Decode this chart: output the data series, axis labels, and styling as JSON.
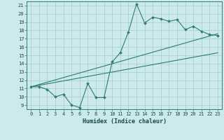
{
  "xlabel": "Humidex (Indice chaleur)",
  "xlim": [
    -0.5,
    23.5
  ],
  "ylim": [
    8.5,
    21.5
  ],
  "xticks": [
    0,
    1,
    2,
    3,
    4,
    5,
    6,
    7,
    8,
    9,
    10,
    11,
    12,
    13,
    14,
    15,
    16,
    17,
    18,
    19,
    20,
    21,
    22,
    23
  ],
  "yticks": [
    9,
    10,
    11,
    12,
    13,
    14,
    15,
    16,
    17,
    18,
    19,
    20,
    21
  ],
  "bg_color": "#cce9ec",
  "line_color": "#2e7d6b",
  "grid_color": "#aacfd4",
  "data_x": [
    0,
    1,
    2,
    3,
    4,
    5,
    6,
    7,
    8,
    9,
    10,
    11,
    12,
    13,
    14,
    15,
    16,
    17,
    18,
    19,
    20,
    21,
    22,
    23
  ],
  "data_y": [
    11.2,
    11.2,
    10.9,
    10.0,
    10.3,
    9.0,
    8.7,
    11.6,
    9.9,
    9.9,
    14.2,
    15.3,
    17.8,
    21.2,
    18.9,
    19.6,
    19.4,
    19.1,
    19.3,
    18.1,
    18.5,
    17.9,
    17.5,
    17.4
  ],
  "line1_x": [
    0,
    23
  ],
  "line1_y": [
    11.2,
    15.3
  ],
  "line2_x": [
    0,
    23
  ],
  "line2_y": [
    11.2,
    17.6
  ],
  "tick_fontsize": 5.0,
  "xlabel_fontsize": 6.0
}
